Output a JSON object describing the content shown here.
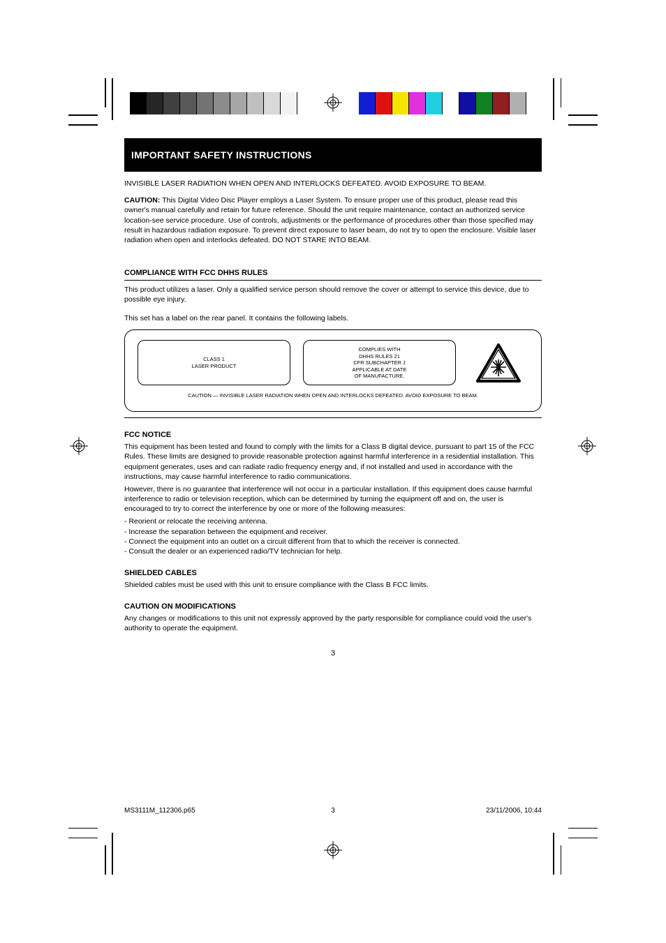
{
  "cal_gray": [
    "#000000",
    "#262626",
    "#404040",
    "#595959",
    "#737373",
    "#8c8c8c",
    "#a6a6a6",
    "#bfbfbf",
    "#d9d9d9",
    "#f2f2f2"
  ],
  "cal_color": [
    "#1020d0",
    "#e01010",
    "#f5e400",
    "#e030e0",
    "#20d0e0",
    "#ffffff",
    "#1010a0",
    "#108020",
    "#902020",
    "#b0b0b0"
  ],
  "cal_sw_width": 24,
  "title": "IMPORTANT SAFETY INSTRUCTIONS",
  "invisible_radiation": "INVISIBLE LASER RADIATION WHEN OPEN AND INTERLOCKS DEFEATED. AVOID EXPOSURE TO BEAM.",
  "caution_heading": "CAUTION:",
  "caution_body": "This Digital Video Disc Player employs a Laser System. To ensure proper use of this product, please read this owner's manual carefully and retain for future reference. Should the unit require maintenance, contact an authorized service location-see service procedure. Use of controls, adjustments or the performance of procedures other than those specified may result in hazardous radiation exposure. To prevent direct exposure to laser beam, do not try to open the enclosure. Visible laser radiation when open and interlocks defeated. DO NOT STARE INTO BEAM.",
  "dhhs_heading": "COMPLIANCE WITH FCC DHHS RULES",
  "dhhs_body": "This product utilizes a laser. Only a qualified service person should remove the cover or attempt to service this device, due to possible eye injury.",
  "labels_caption": "This set has a label on the rear panel. It contains the following labels.",
  "label1": {
    "l1": "CLASS 1",
    "l2": "LASER PRODUCT"
  },
  "label2": {
    "l1": "COMPLIES WITH",
    "l2": "DHHS RULES 21",
    "l3": "CFR SUBCHAPTER J",
    "l4": "APPLICABLE AT DATE",
    "l5": "OF MANUFACTURE."
  },
  "label_bottom": "CAUTION — INVISIBLE LASER RADIATION WHEN OPEN AND INTERLOCKS DEFEATED. AVOID EXPOSURE TO BEAM.",
  "fcc_heading": "FCC NOTICE",
  "fcc_p1": "This equipment has been tested and found to comply with the limits for a Class B digital device, pursuant to part 15 of the FCC Rules. These limits are designed to provide reasonable protection against harmful interference in a residential installation. This equipment generates, uses and can radiate radio frequency energy and, if not installed and used in accordance with the instructions, may cause harmful interference to radio communications.",
  "fcc_p2": "However, there is no guarantee that interference will not occur in a particular installation. If this equipment does cause harmful interference to radio or television reception, which can be determined by turning the equipment off and on, the user is encouraged to try to correct the interference by one or more of the following measures:",
  "fcc_b1": "Reorient or relocate the receiving antenna.",
  "fcc_b2": "Increase the separation between the equipment and receiver.",
  "fcc_b3": "Connect the equipment into an outlet on a circuit different from that to which the receiver is connected.",
  "fcc_b4": "Consult the dealer or an experienced radio/TV technician for help.",
  "shield_heading": "SHIELDED CABLES",
  "shield_body": "Shielded cables must be used with this unit to ensure compliance with the Class B FCC limits.",
  "mod_heading": "CAUTION ON MODIFICATIONS",
  "mod_body": "Any changes or modifications to this unit not expressly approved by the party responsible for compliance could void the user's authority to operate the equipment.",
  "page_number_label": "3",
  "footer_file": "MS3111M_112306.p65",
  "footer_page": "3",
  "footer_date": "23/11/2006, 10:44"
}
